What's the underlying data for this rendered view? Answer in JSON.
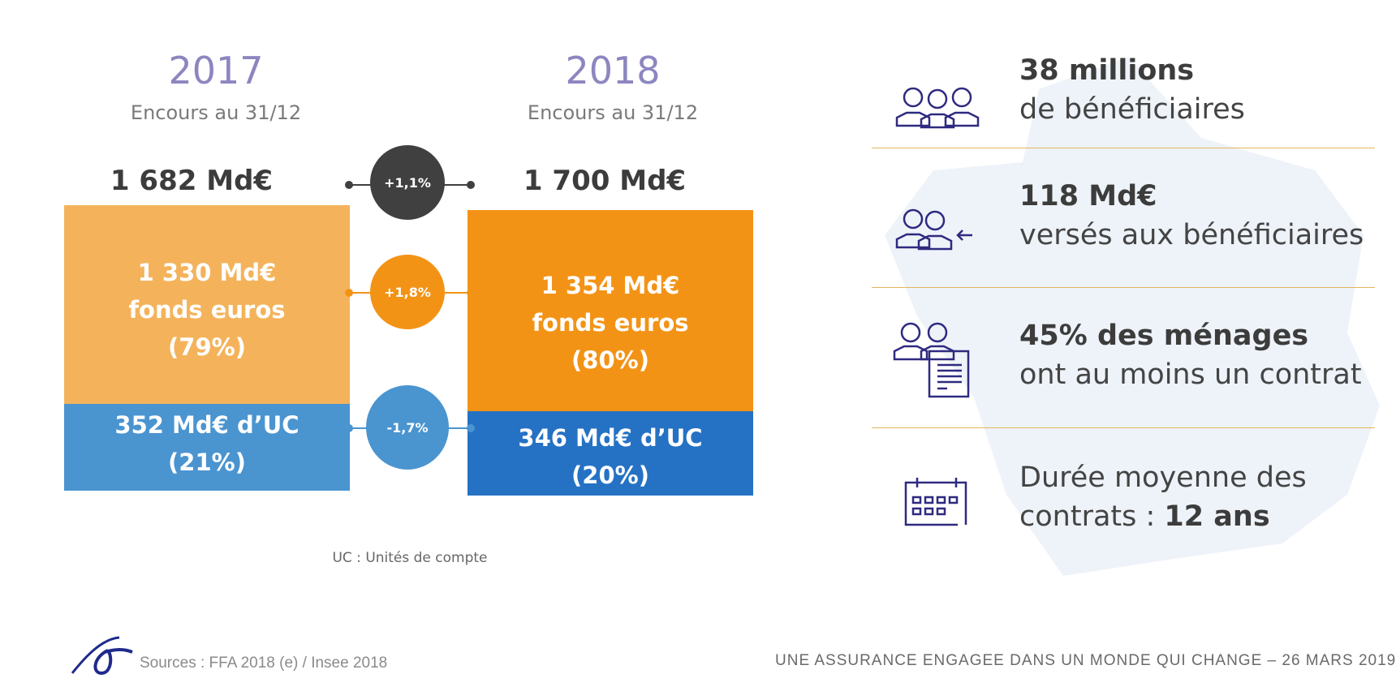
{
  "left": {
    "year": "2017",
    "subtitle": "Encours au 31/12",
    "total": "1 682 Md€",
    "fonds_amount": "1 330 Md€",
    "fonds_label": "fonds euros",
    "fonds_pct": "(79%)",
    "uc_amount": "352 Md€ d’UC",
    "uc_pct": "(21%)",
    "fonds_share": 79
  },
  "right": {
    "year": "2018",
    "subtitle": "Encours au 31/12",
    "total": "1 700 Md€",
    "fonds_amount": "1 354 Md€",
    "fonds_label": "fonds euros",
    "fonds_pct": "(80%)",
    "uc_amount": "346 Md€ d’UC",
    "uc_pct": "(20%)",
    "fonds_share": 80
  },
  "changes": {
    "total": "+1,1%",
    "fonds": "+1,8%",
    "uc": "-1,7%"
  },
  "note": "UC : Unités de compte",
  "stats": [
    {
      "icon": "people-group-icon",
      "bold": "38 millions",
      "text": "de bénéficiaires"
    },
    {
      "icon": "people-payment-icon",
      "bold": "118 Md€",
      "text": "versés aux bénéficiaires"
    },
    {
      "icon": "households-contract-icon",
      "bold": "45% des ménages",
      "text": "ont au moins un contrat"
    },
    {
      "icon": "calendar-icon",
      "text_line1": "Durée moyenne des",
      "text_line2": "contrats : ",
      "bold": "12 ans"
    }
  ],
  "footer": {
    "sources": "Sources : FFA 2018 (e) / Insee 2018",
    "tagline": "UNE ASSURANCE ENGAGEE DANS UN MONDE QUI CHANGE – 26 MARS 2019"
  },
  "colors": {
    "fonds_2017": "#f4b35b",
    "fonds_2018": "#f39316",
    "uc_2017": "#4a94d0",
    "uc_2018": "#2572c4",
    "total_change": "#404040",
    "year": "#8c86c0",
    "icon": "#2e2a80",
    "separator": "#e2b55c"
  }
}
